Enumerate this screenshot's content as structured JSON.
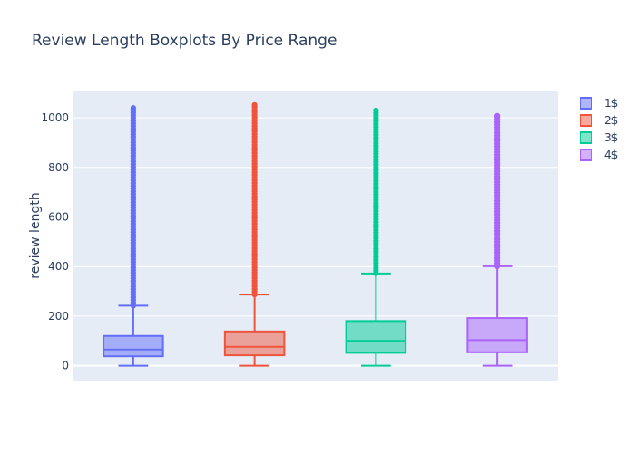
{
  "chart_data": {
    "type": "box",
    "title": "Review Length Boxplots By Price Range",
    "xlabel": "",
    "ylabel": "review length",
    "ylim": [
      -60,
      1110
    ],
    "yticks": [
      0,
      200,
      400,
      600,
      800,
      1000
    ],
    "grid": true,
    "legend_position": "right",
    "series": [
      {
        "name": "1$",
        "color": "#636efa",
        "fill": "rgba(99,110,250,0.5)",
        "min": 0,
        "q1": 38,
        "median": 65,
        "q3": 120,
        "whisker_high": 242,
        "max": 1040,
        "outliers_from": 242
      },
      {
        "name": "2$",
        "color": "#ef553b",
        "fill": "rgba(239,85,59,0.5)",
        "min": 0,
        "q1": 42,
        "median": 76,
        "q3": 138,
        "whisker_high": 287,
        "max": 1052,
        "outliers_from": 287
      },
      {
        "name": "3$",
        "color": "#00cc96",
        "fill": "rgba(0,204,150,0.5)",
        "min": 0,
        "q1": 52,
        "median": 100,
        "q3": 180,
        "whisker_high": 372,
        "max": 1030,
        "outliers_from": 372
      },
      {
        "name": "4$",
        "color": "#ab63fa",
        "fill": "rgba(171,99,250,0.5)",
        "min": 0,
        "q1": 54,
        "median": 103,
        "q3": 192,
        "whisker_high": 401,
        "max": 1008,
        "outliers_from": 401
      }
    ]
  }
}
